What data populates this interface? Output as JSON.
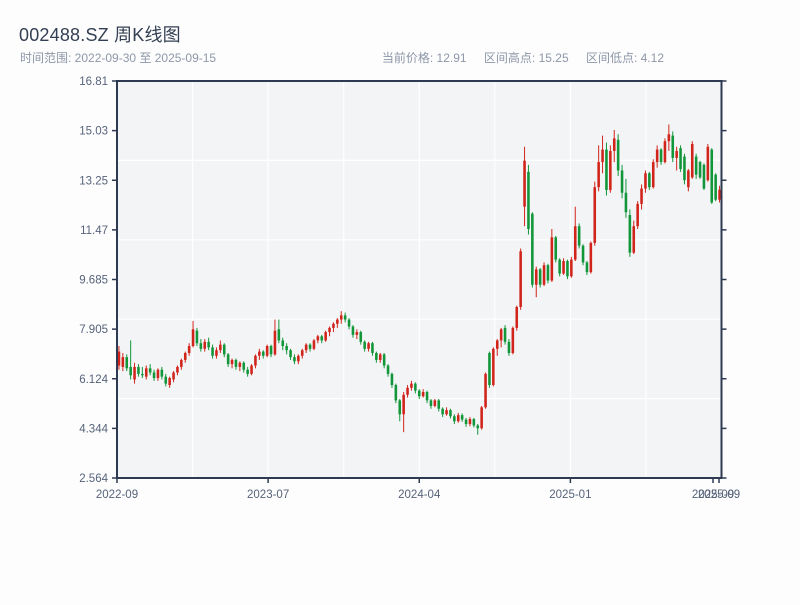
{
  "header": {
    "title": "002488.SZ 周K线图",
    "range_label": "时间范围: 2022-09-30 至 2025-09-15",
    "stats": {
      "current": "当前价格: 12.91",
      "high": "区间高点: 15.25",
      "low": "区间低点: 4.12"
    }
  },
  "chart_data": {
    "type": "candlestick",
    "symbol": "002488.SZ",
    "freq": "weekly",
    "date_start": "2022-09-30",
    "date_end": "2025-09-15",
    "current_price": 12.91,
    "range_high": 15.25,
    "range_low": 4.12,
    "ylim": [
      2.564,
      16.81
    ],
    "y_ticks": [
      "16.81",
      "15.03",
      "13.25",
      "11.47",
      "9.685",
      "7.905",
      "6.124",
      "4.344",
      "2.564"
    ],
    "x_ticks": [
      {
        "pos": 0.0,
        "label": "2022-09"
      },
      {
        "pos": 0.25,
        "label": "2023-07"
      },
      {
        "pos": 0.5,
        "label": "2024-04"
      },
      {
        "pos": 0.75,
        "label": "2025-01"
      },
      {
        "pos": 0.986,
        "label": "2025-09"
      },
      {
        "pos": 0.9959,
        "label": "2025-09"
      }
    ],
    "up_color": "#d1251c",
    "down_color": "#12963a",
    "grid_color": "#ffffff",
    "plot_bg": "#f3f4f6",
    "frame_color": "#2d3a52",
    "label_color": "#56637a",
    "candles": [
      [
        6.6,
        7.3,
        6.45,
        7.1
      ],
      [
        6.55,
        7.05,
        6.4,
        6.9
      ],
      [
        6.9,
        7.0,
        6.4,
        6.5
      ],
      [
        6.55,
        7.5,
        6.1,
        6.25
      ],
      [
        6.1,
        6.7,
        5.95,
        6.55
      ],
      [
        6.55,
        6.65,
        6.2,
        6.3
      ],
      [
        6.3,
        6.55,
        6.15,
        6.25
      ],
      [
        6.2,
        6.6,
        6.1,
        6.5
      ],
      [
        6.5,
        6.65,
        6.25,
        6.35
      ],
      [
        6.35,
        6.45,
        6.05,
        6.15
      ],
      [
        6.15,
        6.5,
        6.05,
        6.45
      ],
      [
        6.45,
        6.55,
        6.1,
        6.2
      ],
      [
        6.2,
        6.3,
        5.85,
        5.95
      ],
      [
        5.9,
        6.2,
        5.8,
        6.15
      ],
      [
        6.1,
        6.4,
        6.0,
        6.35
      ],
      [
        6.35,
        6.6,
        6.25,
        6.55
      ],
      [
        6.55,
        6.85,
        6.45,
        6.8
      ],
      [
        6.8,
        7.1,
        6.7,
        7.05
      ],
      [
        7.05,
        7.4,
        6.95,
        7.3
      ],
      [
        7.3,
        8.2,
        7.25,
        7.9
      ],
      [
        7.85,
        7.95,
        7.3,
        7.4
      ],
      [
        7.4,
        7.55,
        7.1,
        7.2
      ],
      [
        7.2,
        7.55,
        7.1,
        7.45
      ],
      [
        7.45,
        7.6,
        7.15,
        7.25
      ],
      [
        7.25,
        7.35,
        6.85,
        6.95
      ],
      [
        6.95,
        7.25,
        6.85,
        7.15
      ],
      [
        7.15,
        7.5,
        7.05,
        7.35
      ],
      [
        7.35,
        7.4,
        6.9,
        7.0
      ],
      [
        7.0,
        7.05,
        6.55,
        6.65
      ],
      [
        6.65,
        6.85,
        6.5,
        6.8
      ],
      [
        6.8,
        6.85,
        6.45,
        6.55
      ],
      [
        6.55,
        6.75,
        6.4,
        6.7
      ],
      [
        6.7,
        6.75,
        6.35,
        6.45
      ],
      [
        6.45,
        6.55,
        6.2,
        6.3
      ],
      [
        6.3,
        6.65,
        6.25,
        6.6
      ],
      [
        6.6,
        7.0,
        6.5,
        6.95
      ],
      [
        6.95,
        7.2,
        6.8,
        7.1
      ],
      [
        7.1,
        7.15,
        6.85,
        6.95
      ],
      [
        6.95,
        7.35,
        6.9,
        7.3
      ],
      [
        7.3,
        7.35,
        6.9,
        7.0
      ],
      [
        7.0,
        8.25,
        6.95,
        7.85
      ],
      [
        7.9,
        8.25,
        7.4,
        7.5
      ],
      [
        7.5,
        7.6,
        7.15,
        7.3
      ],
      [
        7.3,
        7.4,
        7.0,
        7.15
      ],
      [
        7.15,
        7.2,
        6.8,
        6.9
      ],
      [
        6.9,
        7.0,
        6.65,
        6.75
      ],
      [
        6.75,
        7.0,
        6.65,
        6.95
      ],
      [
        6.95,
        7.2,
        6.85,
        7.15
      ],
      [
        7.15,
        7.4,
        7.05,
        7.35
      ],
      [
        7.35,
        7.4,
        7.1,
        7.2
      ],
      [
        7.2,
        7.55,
        7.15,
        7.5
      ],
      [
        7.5,
        7.7,
        7.4,
        7.65
      ],
      [
        7.65,
        7.7,
        7.4,
        7.5
      ],
      [
        7.5,
        7.85,
        7.45,
        7.8
      ],
      [
        7.8,
        8.0,
        7.65,
        7.95
      ],
      [
        7.95,
        8.15,
        7.8,
        8.1
      ],
      [
        8.1,
        8.3,
        7.95,
        8.25
      ],
      [
        8.25,
        8.55,
        8.1,
        8.4
      ],
      [
        8.4,
        8.5,
        8.15,
        8.25
      ],
      [
        8.25,
        8.3,
        7.9,
        8.0
      ],
      [
        8.0,
        8.05,
        7.6,
        7.7
      ],
      [
        7.7,
        7.9,
        7.55,
        7.8
      ],
      [
        7.8,
        7.85,
        7.35,
        7.45
      ],
      [
        7.45,
        7.5,
        7.1,
        7.2
      ],
      [
        7.2,
        7.45,
        7.1,
        7.4
      ],
      [
        7.4,
        7.45,
        6.95,
        7.05
      ],
      [
        7.05,
        7.1,
        6.7,
        6.8
      ],
      [
        6.8,
        7.05,
        6.7,
        7.0
      ],
      [
        7.0,
        7.05,
        6.5,
        6.6
      ],
      [
        6.6,
        6.65,
        6.2,
        6.3
      ],
      [
        6.3,
        6.35,
        5.8,
        5.9
      ],
      [
        5.9,
        5.95,
        5.25,
        5.35
      ],
      [
        5.35,
        5.4,
        4.6,
        4.85
      ],
      [
        4.85,
        5.65,
        4.21,
        5.55
      ],
      [
        5.55,
        5.9,
        5.45,
        5.8
      ],
      [
        5.8,
        6.05,
        5.7,
        5.95
      ],
      [
        5.95,
        6.0,
        5.6,
        5.7
      ],
      [
        5.7,
        5.75,
        5.4,
        5.5
      ],
      [
        5.5,
        5.75,
        5.45,
        5.65
      ],
      [
        5.65,
        5.7,
        5.25,
        5.35
      ],
      [
        5.35,
        5.4,
        5.05,
        5.15
      ],
      [
        5.15,
        5.4,
        5.1,
        5.35
      ],
      [
        5.35,
        5.4,
        4.95,
        5.05
      ],
      [
        5.05,
        5.1,
        4.75,
        4.85
      ],
      [
        4.85,
        5.1,
        4.8,
        5.0
      ],
      [
        5.0,
        5.05,
        4.7,
        4.78
      ],
      [
        4.78,
        4.85,
        4.5,
        4.6
      ],
      [
        4.6,
        4.9,
        4.55,
        4.82
      ],
      [
        4.82,
        4.88,
        4.58,
        4.66
      ],
      [
        4.66,
        4.72,
        4.4,
        4.5
      ],
      [
        4.5,
        4.75,
        4.42,
        4.68
      ],
      [
        4.68,
        4.72,
        4.38,
        4.45
      ],
      [
        4.45,
        4.5,
        4.12,
        4.35
      ],
      [
        4.35,
        5.15,
        4.3,
        5.1
      ],
      [
        5.1,
        6.35,
        5.05,
        6.3
      ],
      [
        7.05,
        7.1,
        5.8,
        5.9
      ],
      [
        5.9,
        7.25,
        5.85,
        7.2
      ],
      [
        7.2,
        7.55,
        6.95,
        7.5
      ],
      [
        7.5,
        7.95,
        7.25,
        7.9
      ],
      [
        7.95,
        8.05,
        7.35,
        7.45
      ],
      [
        7.45,
        7.55,
        6.95,
        7.05
      ],
      [
        7.05,
        8.0,
        7.0,
        7.95
      ],
      [
        7.95,
        8.75,
        7.85,
        8.7
      ],
      [
        8.7,
        10.8,
        8.6,
        10.7
      ],
      [
        12.3,
        14.45,
        11.6,
        13.95
      ],
      [
        13.55,
        13.8,
        11.3,
        11.5
      ],
      [
        12.05,
        12.1,
        9.4,
        9.5
      ],
      [
        9.5,
        10.15,
        9.05,
        10.05
      ],
      [
        10.05,
        10.1,
        9.4,
        9.5
      ],
      [
        9.5,
        10.3,
        9.45,
        10.2
      ],
      [
        10.2,
        10.25,
        9.55,
        9.65
      ],
      [
        9.65,
        11.5,
        9.6,
        11.2
      ],
      [
        11.2,
        11.25,
        10.3,
        10.4
      ],
      [
        10.4,
        10.45,
        9.8,
        9.9
      ],
      [
        9.9,
        10.45,
        9.85,
        10.35
      ],
      [
        10.35,
        10.4,
        9.7,
        9.8
      ],
      [
        9.8,
        10.5,
        9.75,
        10.4
      ],
      [
        10.4,
        12.3,
        10.35,
        11.6
      ],
      [
        11.6,
        11.7,
        10.8,
        10.9
      ],
      [
        10.9,
        10.95,
        10.2,
        10.3
      ],
      [
        10.3,
        10.35,
        9.85,
        9.95
      ],
      [
        9.95,
        11.05,
        9.9,
        11.0
      ],
      [
        11.0,
        13.2,
        10.9,
        13.0
      ],
      [
        13.0,
        14.5,
        12.85,
        13.9
      ],
      [
        13.9,
        14.85,
        13.5,
        14.35
      ],
      [
        14.35,
        14.6,
        12.7,
        12.9
      ],
      [
        12.9,
        14.5,
        12.8,
        14.3
      ],
      [
        14.3,
        15.05,
        13.9,
        14.75
      ],
      [
        14.7,
        14.9,
        13.4,
        13.6
      ],
      [
        13.6,
        13.8,
        12.6,
        12.8
      ],
      [
        12.8,
        13.3,
        11.9,
        12.1
      ],
      [
        12.0,
        12.2,
        10.5,
        10.65
      ],
      [
        10.65,
        11.8,
        10.6,
        11.6
      ],
      [
        11.6,
        12.5,
        11.5,
        12.4
      ],
      [
        12.4,
        13.1,
        12.2,
        12.95
      ],
      [
        12.95,
        13.6,
        12.8,
        13.5
      ],
      [
        13.5,
        13.55,
        12.9,
        13.0
      ],
      [
        13.0,
        14.0,
        12.95,
        13.9
      ],
      [
        13.9,
        14.5,
        13.7,
        14.35
      ],
      [
        14.35,
        14.4,
        13.8,
        13.9
      ],
      [
        13.9,
        14.75,
        13.85,
        14.65
      ],
      [
        14.65,
        15.25,
        14.3,
        14.9
      ],
      [
        14.85,
        15.0,
        13.9,
        14.05
      ],
      [
        14.05,
        14.45,
        13.6,
        14.3
      ],
      [
        14.4,
        14.5,
        13.55,
        13.65
      ],
      [
        14.1,
        14.2,
        13.1,
        13.25
      ],
      [
        13.0,
        13.65,
        12.85,
        13.6
      ],
      [
        13.35,
        14.65,
        13.3,
        14.55
      ],
      [
        14.1,
        14.2,
        13.3,
        13.45
      ],
      [
        13.9,
        13.95,
        13.3,
        13.35
      ],
      [
        13.8,
        13.85,
        12.9,
        12.95
      ],
      [
        13.25,
        14.55,
        13.2,
        14.45
      ],
      [
        14.35,
        14.4,
        12.4,
        12.45
      ],
      [
        13.45,
        13.5,
        12.5,
        12.55
      ],
      [
        12.55,
        13.05,
        12.45,
        12.91
      ]
    ]
  }
}
